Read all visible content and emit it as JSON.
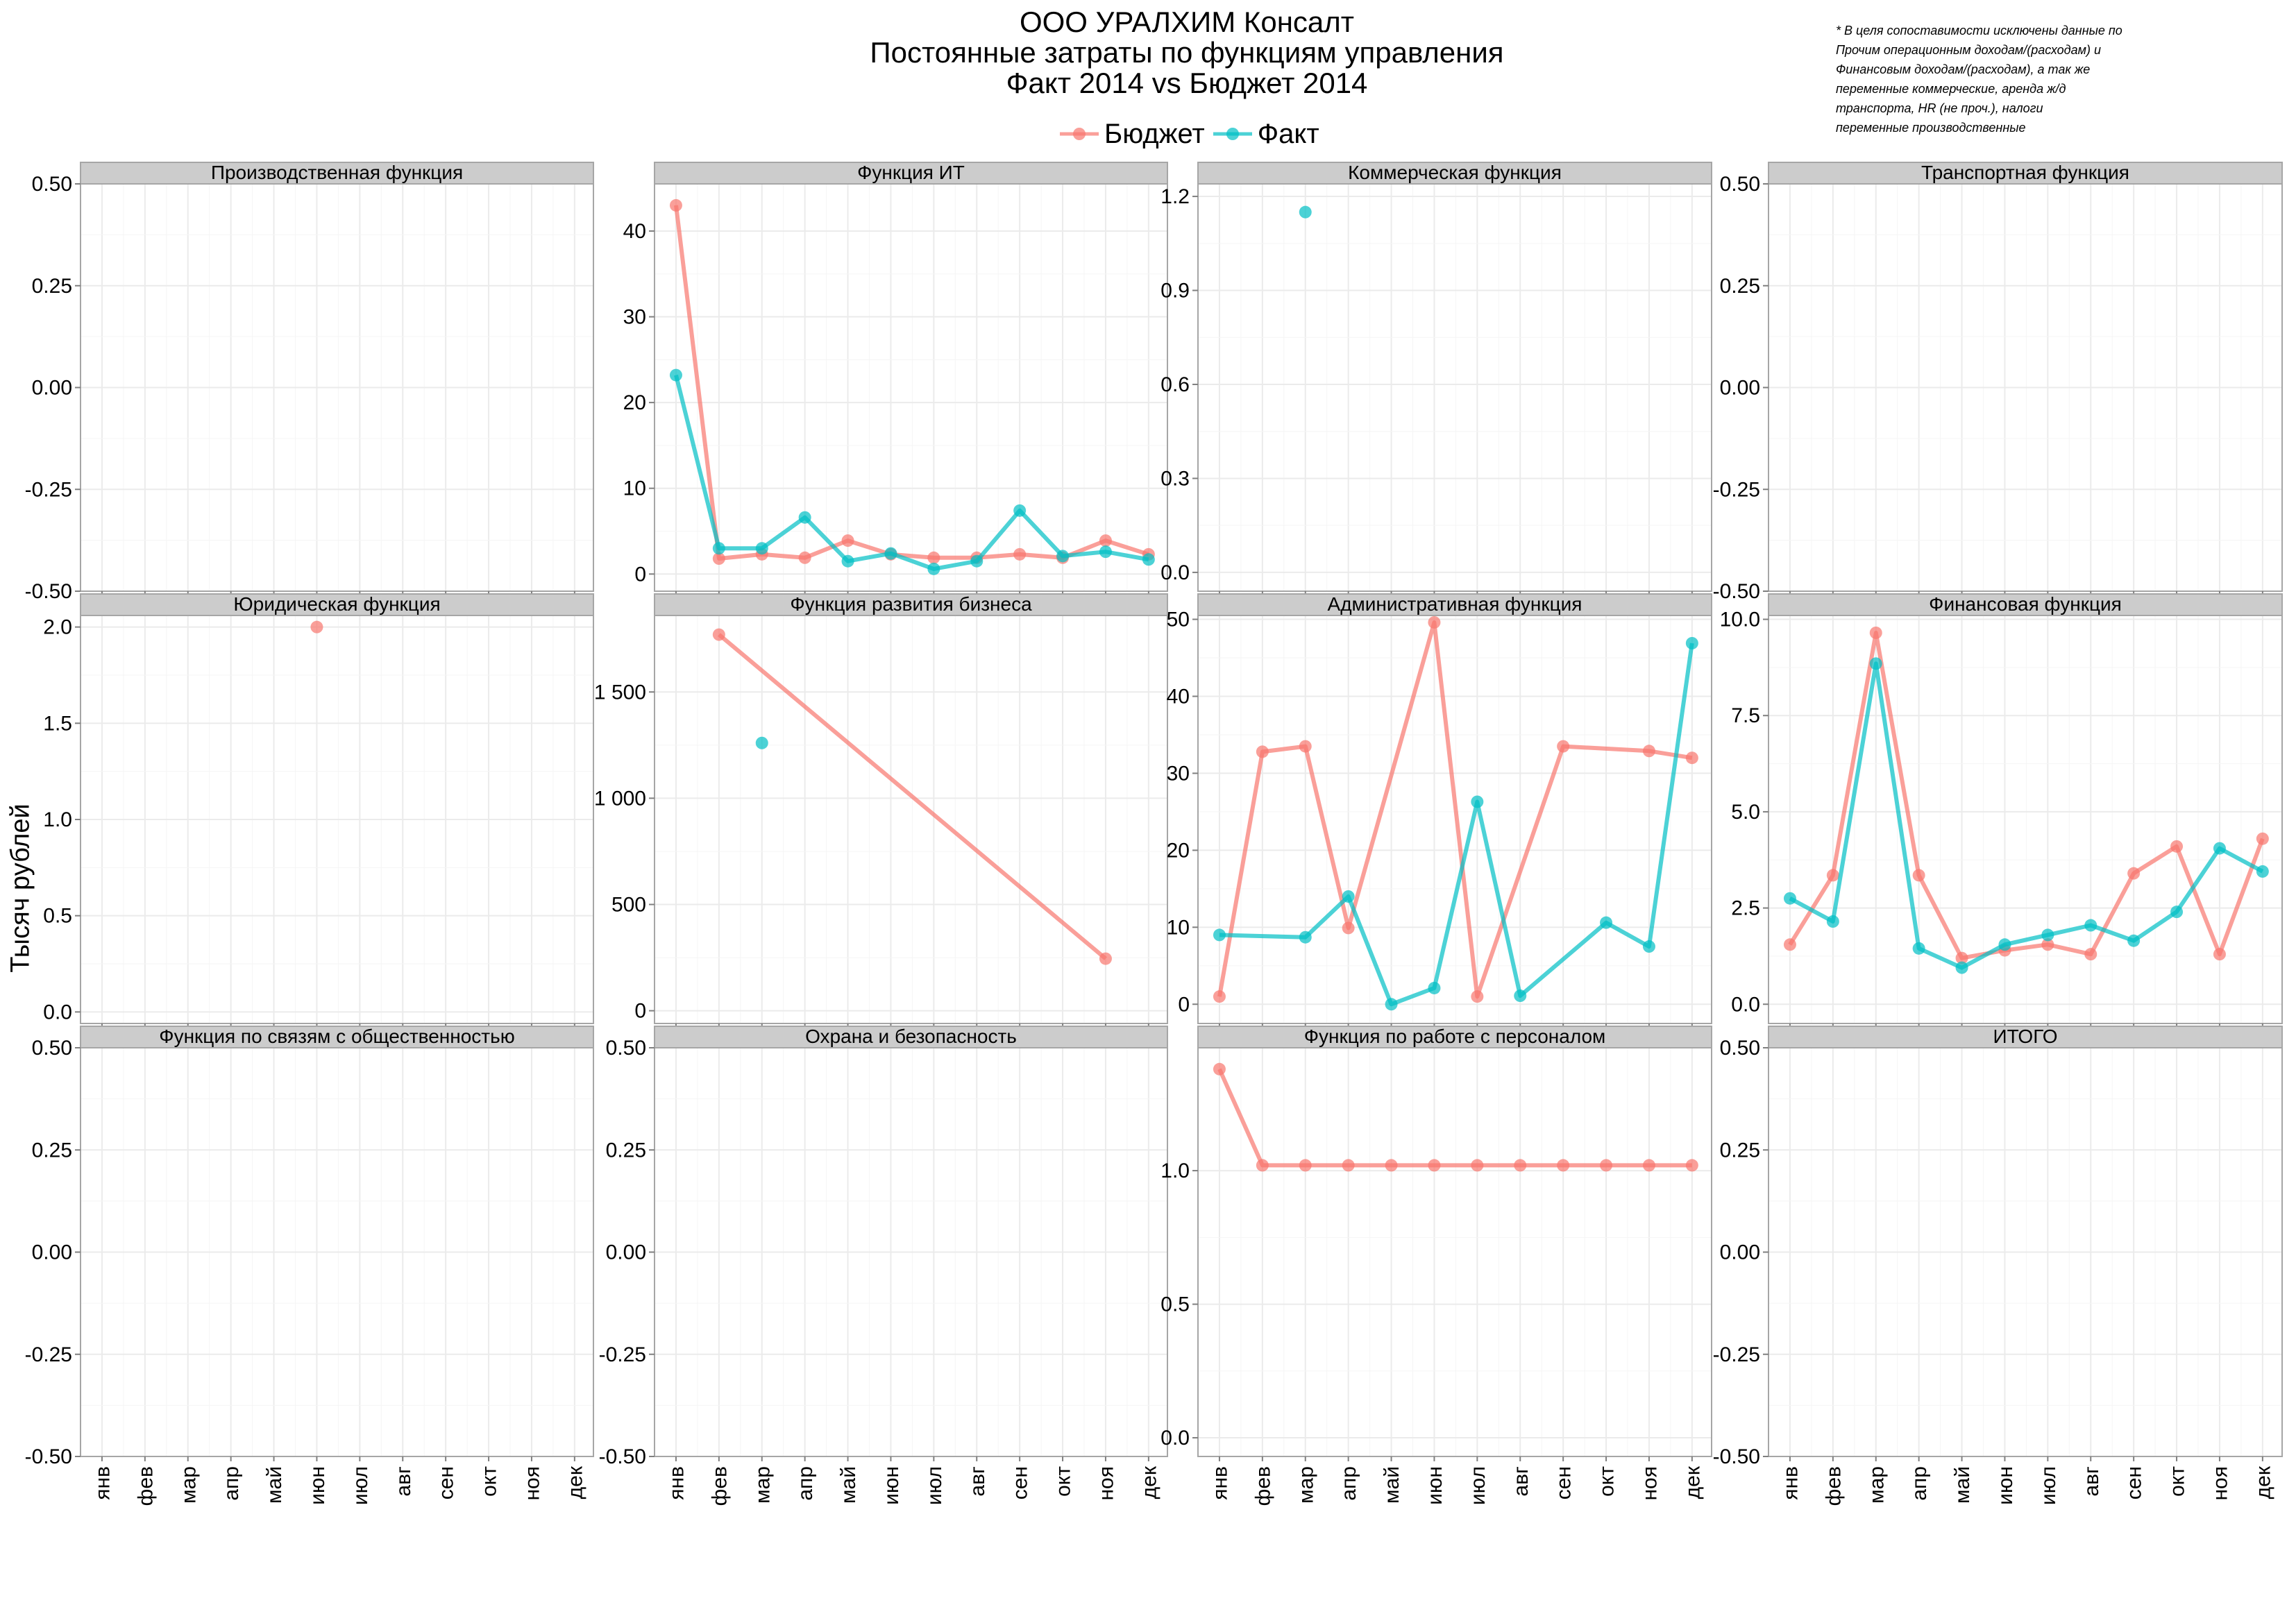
{
  "title": {
    "line1": "ООО УРАЛХИМ Консалт",
    "line2": "Постоянные затраты по функциям управления",
    "line3": "Факт 2014 vs Бюджет 2014"
  },
  "note": "* В целя сопоставимости исключены данные по\n  Прочим операционным доходам/(расходам) и\n  Финансовым доходам/(расходам), а так же\n  переменные коммерческие, аренда ж/д\n  транспорта, HR (не проч.), налоги\n  переменные производственные",
  "legend": [
    {
      "name": "Бюджет",
      "color": "#F8766D"
    },
    {
      "name": "Факт",
      "color": "#00BFC4"
    }
  ],
  "ylabel": "Тысяч рублей",
  "chart_data": {
    "type": "line",
    "facet_layout": "3x4, free y scales",
    "months": [
      "янв",
      "фев",
      "мар",
      "апр",
      "май",
      "июн",
      "июл",
      "авг",
      "сен",
      "окт",
      "ноя",
      "дек"
    ],
    "colors": {
      "budget": "#F8766D",
      "fact": "#00BFC4"
    },
    "grid": true,
    "panels": [
      {
        "title": "Производственная функция",
        "ylim": [
          -0.5,
          0.5
        ],
        "yticks": [
          -0.5,
          -0.25,
          0,
          0.25,
          0.5
        ],
        "yticklabels": [
          "-0.50",
          "-0.25",
          "0.00",
          "0.25",
          "0.50"
        ],
        "budget": [],
        "fact": []
      },
      {
        "title": "Функция ИТ",
        "ylim": [
          -2,
          45.5
        ],
        "yticks": [
          0,
          10,
          20,
          30,
          40
        ],
        "yticklabels": [
          "0",
          "10",
          "20",
          "30",
          "40"
        ],
        "budget": [
          [
            1,
            43
          ],
          [
            2,
            1.8
          ],
          [
            3,
            2.3
          ],
          [
            4,
            1.9
          ],
          [
            5,
            3.9
          ],
          [
            6,
            2.3
          ],
          [
            7,
            1.9
          ],
          [
            8,
            1.9
          ],
          [
            9,
            2.3
          ],
          [
            10,
            1.9
          ],
          [
            11,
            3.9
          ],
          [
            12,
            2.3
          ]
        ],
        "fact": [
          [
            1,
            23.2
          ],
          [
            2,
            3.0
          ],
          [
            3,
            3.0
          ],
          [
            4,
            6.6
          ],
          [
            5,
            1.5
          ],
          [
            6,
            2.4
          ],
          [
            7,
            0.6
          ],
          [
            8,
            1.5
          ],
          [
            9,
            7.4
          ],
          [
            10,
            2.1
          ],
          [
            11,
            2.6
          ],
          [
            12,
            1.7
          ]
        ]
      },
      {
        "title": "Коммерческая функция",
        "ylim": [
          -0.06,
          1.24
        ],
        "yticks": [
          0,
          0.3,
          0.6,
          0.9,
          1.2
        ],
        "yticklabels": [
          "0.0",
          "0.3",
          "0.6",
          "0.9",
          "1.2"
        ],
        "budget": [],
        "fact": [
          [
            3,
            1.15
          ]
        ]
      },
      {
        "title": "Транспортная функция",
        "ylim": [
          -0.5,
          0.5
        ],
        "yticks": [
          -0.5,
          -0.25,
          0,
          0.25,
          0.5
        ],
        "yticklabels": [
          "-0.50",
          "-0.25",
          "0.00",
          "0.25",
          "0.50"
        ],
        "budget": [],
        "fact": []
      },
      {
        "title": "Юридическая функция",
        "ylim": [
          -0.06,
          2.06
        ],
        "yticks": [
          0,
          0.5,
          1,
          1.5,
          2
        ],
        "yticklabels": [
          "0.0",
          "0.5",
          "1.0",
          "1.5",
          "2.0"
        ],
        "budget": [
          [
            6,
            2.0
          ]
        ],
        "fact": []
      },
      {
        "title": "Функция развития бизнеса",
        "ylim": [
          -60,
          1860
        ],
        "yticks": [
          0,
          500,
          1000,
          1500
        ],
        "yticklabels": [
          "0",
          "500",
          "1 000",
          "1 500"
        ],
        "budget": [
          [
            2,
            1770
          ],
          [
            11,
            245
          ]
        ],
        "fact": [
          [
            3,
            1260
          ]
        ]
      },
      {
        "title": "Административная функция",
        "ylim": [
          -2.5,
          50.5
        ],
        "yticks": [
          0,
          10,
          20,
          30,
          40,
          50
        ],
        "yticklabels": [
          "0",
          "10",
          "20",
          "30",
          "40",
          "50"
        ],
        "budget": [
          [
            1,
            1.0
          ],
          [
            2,
            32.8
          ],
          [
            3,
            33.5
          ],
          [
            4,
            9.9
          ],
          [
            6,
            49.6
          ],
          [
            7,
            1.0
          ],
          [
            9,
            33.5
          ],
          [
            11,
            32.9
          ],
          [
            12,
            32.0
          ]
        ],
        "fact": [
          [
            1,
            9.0
          ],
          [
            3,
            8.7
          ],
          [
            4,
            14.0
          ],
          [
            5,
            0.0
          ],
          [
            6,
            2.1
          ],
          [
            7,
            26.3
          ],
          [
            8,
            1.1
          ],
          [
            10,
            10.6
          ],
          [
            11,
            7.5
          ],
          [
            12,
            46.9
          ]
        ]
      },
      {
        "title": "Финансовая функция",
        "ylim": [
          -0.5,
          10.1
        ],
        "yticks": [
          0,
          2.5,
          5,
          7.5,
          10
        ],
        "yticklabels": [
          "0.0",
          "2.5",
          "5.0",
          "7.5",
          "10.0"
        ],
        "budget": [
          [
            1,
            1.55
          ],
          [
            2,
            3.35
          ],
          [
            3,
            9.65
          ],
          [
            4,
            3.35
          ],
          [
            5,
            1.2
          ],
          [
            6,
            1.4
          ],
          [
            7,
            1.55
          ],
          [
            8,
            1.3
          ],
          [
            9,
            3.4
          ],
          [
            10,
            4.1
          ],
          [
            11,
            1.3
          ],
          [
            12,
            4.3
          ]
        ],
        "fact": [
          [
            1,
            2.75
          ],
          [
            2,
            2.15
          ],
          [
            3,
            8.85
          ],
          [
            4,
            1.45
          ],
          [
            5,
            0.95
          ],
          [
            6,
            1.55
          ],
          [
            7,
            1.8
          ],
          [
            8,
            2.05
          ],
          [
            9,
            1.65
          ],
          [
            10,
            2.4
          ],
          [
            11,
            4.05
          ],
          [
            12,
            3.45
          ]
        ]
      },
      {
        "title": "Функция по связям с общественностью",
        "ylim": [
          -0.5,
          0.5
        ],
        "yticks": [
          -0.5,
          -0.25,
          0,
          0.25,
          0.5
        ],
        "yticklabels": [
          "-0.50",
          "-0.25",
          "0.00",
          "0.25",
          "0.50"
        ],
        "budget": [],
        "fact": []
      },
      {
        "title": "Охрана и безопасность",
        "ylim": [
          -0.5,
          0.5
        ],
        "yticks": [
          -0.5,
          -0.25,
          0,
          0.25,
          0.5
        ],
        "yticklabels": [
          "-0.50",
          "-0.25",
          "0.00",
          "0.25",
          "0.50"
        ],
        "budget": [],
        "fact": []
      },
      {
        "title": "Функция по работе с персоналом",
        "ylim": [
          -0.07,
          1.46
        ],
        "yticks": [
          0,
          0.5,
          1
        ],
        "yticklabels": [
          "0.0",
          "0.5",
          "1.0"
        ],
        "budget": [
          [
            1,
            1.38
          ],
          [
            2,
            1.02
          ],
          [
            3,
            1.02
          ],
          [
            4,
            1.02
          ],
          [
            5,
            1.02
          ],
          [
            6,
            1.02
          ],
          [
            7,
            1.02
          ],
          [
            8,
            1.02
          ],
          [
            9,
            1.02
          ],
          [
            10,
            1.02
          ],
          [
            11,
            1.02
          ],
          [
            12,
            1.02
          ]
        ],
        "fact": []
      },
      {
        "title": "ИТОГО",
        "ylim": [
          -0.5,
          0.5
        ],
        "yticks": [
          -0.5,
          -0.25,
          0,
          0.25,
          0.5
        ],
        "yticklabels": [
          "-0.50",
          "-0.25",
          "0.00",
          "0.25",
          "0.50"
        ],
        "budget": [],
        "fact": []
      }
    ]
  }
}
